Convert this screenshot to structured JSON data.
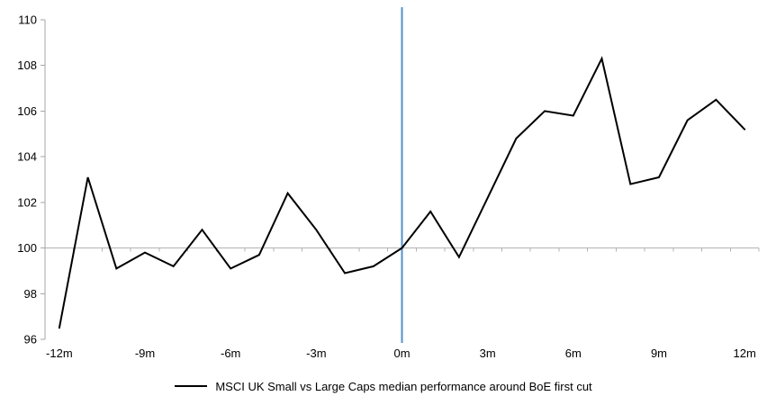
{
  "chart_data": {
    "type": "line",
    "legend": "MSCI UK Small vs Large Caps median performance around BoE first cut",
    "x": [
      -12,
      -11,
      -10,
      -9,
      -8,
      -7,
      -6,
      -5,
      -4,
      -3,
      -2,
      -1,
      0,
      1,
      2,
      3,
      4,
      5,
      6,
      7,
      8,
      9,
      10,
      11,
      12
    ],
    "series": [
      {
        "name": "MSCI UK Small vs Large Caps median performance around BoE first cut",
        "values": [
          96.5,
          103.1,
          99.1,
          99.8,
          99.2,
          100.8,
          99.1,
          99.7,
          102.4,
          100.8,
          98.9,
          99.2,
          100.0,
          101.6,
          99.6,
          102.2,
          104.8,
          106.0,
          105.8,
          108.3,
          102.8,
          103.1,
          105.6,
          106.5,
          105.2
        ]
      }
    ],
    "xtick_positions": [
      -12,
      -9,
      -6,
      -3,
      0,
      3,
      6,
      9,
      12
    ],
    "xtick_labels": [
      "-12m",
      "-9m",
      "-6m",
      "-3m",
      "0m",
      "3m",
      "6m",
      "9m",
      "12m"
    ],
    "ytick_values": [
      96,
      98,
      100,
      102,
      104,
      106,
      108,
      110
    ],
    "ylim": [
      96,
      110
    ],
    "baseline_value": 100,
    "event_line_x": 0,
    "grid": "off",
    "legend_position": "bottom",
    "colors": {
      "series": "#000000",
      "event_line": "#5390cd",
      "axis": "#a6a6a6",
      "baseline": "#b3b3b3",
      "background": "#ffffff",
      "text": "#000000"
    }
  }
}
